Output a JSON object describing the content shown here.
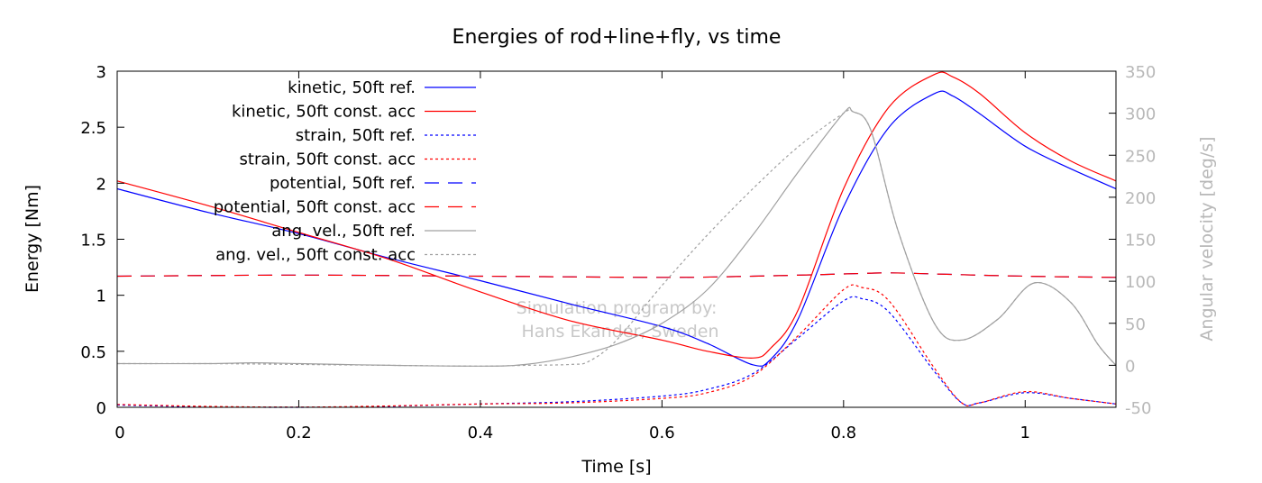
{
  "chart_data": {
    "type": "line",
    "title": "Energies of rod+line+fly, vs time",
    "xlabel": "Time [s]",
    "ylabel": "Energy [Nm]",
    "y2label": "Angular velocity [deg/s]",
    "xlim": [
      0,
      1.1
    ],
    "ylim": [
      0,
      3
    ],
    "y2lim": [
      -50,
      350
    ],
    "xticks": [
      "0",
      "0.2",
      "0.4",
      "0.6",
      "0.8",
      "1"
    ],
    "xtick_values": [
      0,
      0.2,
      0.4,
      0.6,
      0.8,
      1.0
    ],
    "yticks": [
      "0",
      "0.5",
      "1",
      "1.5",
      "2",
      "2.5",
      "3"
    ],
    "ytick_values": [
      0,
      0.5,
      1,
      1.5,
      2,
      2.5,
      3
    ],
    "y2ticks": [
      "-50",
      "0",
      "50",
      "100",
      "150",
      "200",
      "250",
      "300",
      "350"
    ],
    "y2tick_values": [
      -50,
      0,
      50,
      100,
      150,
      200,
      250,
      300,
      350
    ],
    "grid": false,
    "legend_position": "top-left",
    "watermark": [
      "Simulation program by:",
      "Hans Ekander, Sweden"
    ],
    "colors": {
      "ref": "#0000ff",
      "const": "#ff0000",
      "ang": "#a0a0a0",
      "y2axis": "#b8b8b8"
    },
    "series": [
      {
        "name": "kinetic, 50ft ref.",
        "axis": "y",
        "color": "#0000ff",
        "dash": "solid",
        "x": [
          0,
          0.1,
          0.2,
          0.3,
          0.4,
          0.5,
          0.6,
          0.65,
          0.7,
          0.72,
          0.75,
          0.8,
          0.85,
          0.9,
          0.92,
          0.95,
          1.0,
          1.05,
          1.1
        ],
        "y": [
          1.95,
          1.74,
          1.55,
          1.33,
          1.13,
          0.92,
          0.72,
          0.57,
          0.38,
          0.43,
          0.79,
          1.79,
          2.5,
          2.8,
          2.78,
          2.62,
          2.33,
          2.13,
          1.95
        ]
      },
      {
        "name": "kinetic, 50ft const. acc",
        "axis": "y",
        "color": "#ff0000",
        "dash": "solid",
        "x": [
          0,
          0.1,
          0.2,
          0.3,
          0.4,
          0.5,
          0.6,
          0.65,
          0.7,
          0.72,
          0.75,
          0.8,
          0.85,
          0.9,
          0.92,
          0.95,
          1.0,
          1.05,
          1.1
        ],
        "y": [
          2.02,
          1.8,
          1.56,
          1.32,
          1.03,
          0.77,
          0.6,
          0.5,
          0.44,
          0.53,
          0.87,
          1.95,
          2.68,
          2.97,
          2.95,
          2.8,
          2.45,
          2.2,
          2.02
        ]
      },
      {
        "name": "strain, 50ft ref.",
        "axis": "y",
        "color": "#0000ff",
        "dash": "dot",
        "x": [
          0,
          0.1,
          0.2,
          0.3,
          0.4,
          0.5,
          0.6,
          0.65,
          0.7,
          0.75,
          0.8,
          0.82,
          0.85,
          0.9,
          0.93,
          0.95,
          1.0,
          1.05,
          1.1
        ],
        "y": [
          0.02,
          0.005,
          0.0,
          0.01,
          0.03,
          0.05,
          0.1,
          0.16,
          0.3,
          0.62,
          0.95,
          0.97,
          0.85,
          0.32,
          0.04,
          0.04,
          0.13,
          0.08,
          0.03
        ]
      },
      {
        "name": "strain, 50ft const. acc",
        "axis": "y",
        "color": "#ff0000",
        "dash": "dot",
        "x": [
          0,
          0.1,
          0.2,
          0.3,
          0.4,
          0.5,
          0.6,
          0.65,
          0.7,
          0.75,
          0.8,
          0.82,
          0.85,
          0.9,
          0.93,
          0.95,
          1.0,
          1.05,
          1.1
        ],
        "y": [
          0.025,
          0.008,
          0.002,
          0.012,
          0.03,
          0.04,
          0.08,
          0.13,
          0.28,
          0.64,
          1.05,
          1.07,
          0.95,
          0.35,
          0.04,
          0.04,
          0.14,
          0.08,
          0.03
        ]
      },
      {
        "name": "potential, 50ft ref.",
        "axis": "y",
        "color": "#0000ff",
        "dash": "dash",
        "x": [
          0,
          0.2,
          0.4,
          0.6,
          0.7,
          0.8,
          0.85,
          0.9,
          1.0,
          1.1
        ],
        "y": [
          1.17,
          1.18,
          1.17,
          1.16,
          1.17,
          1.19,
          1.2,
          1.19,
          1.17,
          1.16
        ]
      },
      {
        "name": "potential, 50ft const. acc",
        "axis": "y",
        "color": "#ff0000",
        "dash": "dash",
        "x": [
          0,
          0.2,
          0.4,
          0.6,
          0.7,
          0.8,
          0.85,
          0.9,
          1.0,
          1.1
        ],
        "y": [
          1.17,
          1.18,
          1.17,
          1.16,
          1.17,
          1.19,
          1.2,
          1.19,
          1.17,
          1.16
        ]
      },
      {
        "name": "ang. vel., 50ft ref.",
        "axis": "y2",
        "color": "#a0a0a0",
        "dash": "solid",
        "x": [
          0,
          0.1,
          0.15,
          0.2,
          0.3,
          0.4,
          0.45,
          0.5,
          0.55,
          0.6,
          0.65,
          0.7,
          0.75,
          0.8,
          0.81,
          0.83,
          0.86,
          0.9,
          0.93,
          0.97,
          1.01,
          1.05,
          1.08,
          1.1
        ],
        "y": [
          2,
          2,
          3,
          2,
          0,
          -1,
          1,
          10,
          25,
          50,
          90,
          155,
          230,
          300,
          302,
          280,
          160,
          50,
          30,
          55,
          98,
          75,
          25,
          0
        ]
      },
      {
        "name": "ang. vel., 50ft const. acc",
        "axis": "y2",
        "color": "#a0a0a0",
        "dash": "dot",
        "x": [
          0,
          0.1,
          0.2,
          0.3,
          0.4,
          0.45,
          0.5,
          0.52,
          0.55,
          0.6,
          0.65,
          0.7,
          0.75,
          0.8,
          0.81,
          0.83,
          0.86,
          0.9,
          0.93,
          0.97,
          1.01,
          1.05,
          1.08,
          1.1
        ],
        "y": [
          2,
          2,
          1,
          0,
          -1,
          0,
          1,
          5,
          30,
          95,
          155,
          210,
          260,
          300,
          302,
          280,
          160,
          50,
          30,
          55,
          98,
          75,
          25,
          0
        ]
      }
    ]
  }
}
